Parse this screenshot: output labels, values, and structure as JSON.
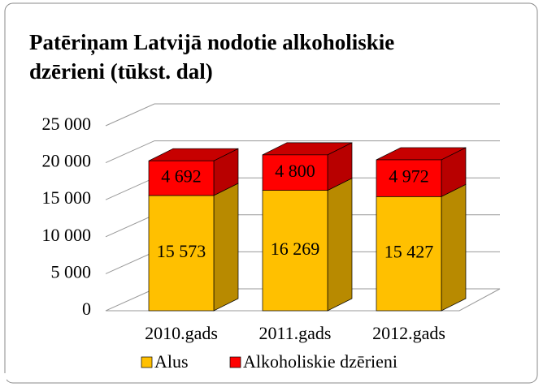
{
  "chart_data": {
    "type": "bar3d_stacked",
    "title": "Patēriņam Latvijā nodotie alkoholiskie dzērieni (tūkst. dal)",
    "categories": [
      "2010.gads",
      "2011.gads",
      "2012.gads"
    ],
    "series": [
      {
        "name": "Alus",
        "color": "#FFC000",
        "values": [
          15573,
          16269,
          15427
        ],
        "value_labels": [
          "15 573",
          "16 269",
          "15 427"
        ]
      },
      {
        "name": "Alkoholiskie dzērieni",
        "color": "#FF0000",
        "values": [
          4692,
          4800,
          4972
        ],
        "value_labels": [
          "4 692",
          "4 800",
          "4 972"
        ]
      }
    ],
    "ylim": [
      0,
      25000
    ],
    "yticks": [
      0,
      {
        "value": 5000,
        "label": "5 000"
      },
      {
        "value": 10000,
        "label": "10 000"
      },
      {
        "value": 15000,
        "label": "15 000"
      },
      {
        "value": 20000,
        "label": "20 000"
      },
      {
        "value": 25000,
        "label": "25 000"
      }
    ],
    "grid": true,
    "legend": "bottom"
  }
}
